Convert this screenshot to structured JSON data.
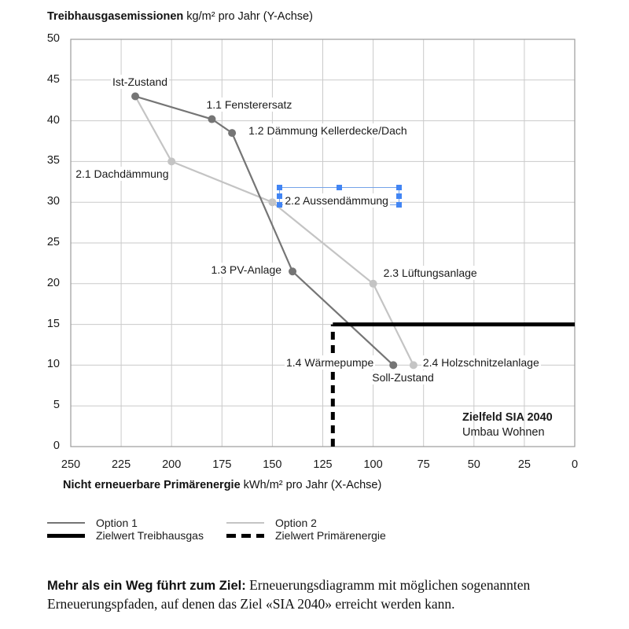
{
  "chart_data": {
    "type": "line",
    "x_axis": {
      "title_bold": "Nicht erneuerbare Primärenergie",
      "title_rest": " kWh/m² pro Jahr (X-Achse)",
      "ticks": [
        250,
        225,
        200,
        175,
        150,
        125,
        100,
        75,
        50,
        25,
        0
      ],
      "range": [
        0,
        250
      ],
      "reversed": true,
      "grid": true
    },
    "y_axis": {
      "title_bold": "Treibhausgasemissionen",
      "title_rest": " kg/m² pro Jahr (Y-Achse)",
      "ticks": [
        50,
        45,
        40,
        35,
        30,
        25,
        20,
        15,
        10,
        5,
        0
      ],
      "range": [
        0,
        50
      ],
      "grid": true
    },
    "series": [
      {
        "name": "Option 1",
        "color": "#757575",
        "points": [
          {
            "x": 218,
            "y": 43,
            "labels": [
              {
                "text": "Ist-Zustand",
                "anchor": "middle",
                "dx": 6,
                "dy": -19
              }
            ]
          },
          {
            "x": 180,
            "y": 40.2,
            "labels": [
              {
                "text": "1.1 Fensterersatz",
                "anchor": "start",
                "dx": -7,
                "dy": -19
              }
            ]
          },
          {
            "x": 170,
            "y": 38.5,
            "labels": [
              {
                "text": "1.2 Dämmung Kellerdecke/Dach",
                "anchor": "start",
                "dx": 21,
                "dy": -3
              }
            ]
          },
          {
            "x": 140,
            "y": 21.5,
            "labels": [
              {
                "text": "1.3 PV-Anlage",
                "anchor": "end",
                "dx": -14,
                "dy": -2
              }
            ]
          },
          {
            "x": 90,
            "y": 10,
            "labels": [
              {
                "text": "1.4 Wärmepumpe",
                "anchor": "end",
                "dx": -25,
                "dy": -3
              },
              {
                "text": "Soll-Zustand",
                "anchor": "start",
                "dx": -27,
                "dy": 16
              }
            ]
          }
        ]
      },
      {
        "name": "Option 2",
        "color": "#c4c4c4",
        "points": [
          {
            "x": 218,
            "y": 43
          },
          {
            "x": 200,
            "y": 35,
            "labels": [
              {
                "text": "2.1 Dachdämmung",
                "anchor": "start",
                "dx": -122,
                "dy": 16
              }
            ]
          },
          {
            "x": 150,
            "y": 30,
            "labels": [
              {
                "text": "2.2 Aussendämmung",
                "anchor": "start",
                "dx": 16,
                "dy": -2
              }
            ],
            "selected": true
          },
          {
            "x": 100,
            "y": 20,
            "labels": [
              {
                "text": "2.3 Lüftungsanlage",
                "anchor": "start",
                "dx": 13,
                "dy": -14
              }
            ]
          },
          {
            "x": 80,
            "y": 10,
            "labels": [
              {
                "text": "2.4 Holzschnitzelanlage",
                "anchor": "start",
                "dx": 12,
                "dy": -3
              }
            ]
          }
        ]
      }
    ],
    "target_lines": [
      {
        "name": "Zielwert Treibhausgas",
        "orientation": "horizontal",
        "value": 15,
        "from": 120,
        "to": 0,
        "style": "solid",
        "color": "#000000"
      },
      {
        "name": "Zielwert Primärenergie",
        "orientation": "vertical",
        "value": 120,
        "from": 0,
        "to": 15,
        "style": "dashed",
        "color": "#000000"
      }
    ],
    "annotation": {
      "line1": "Zielfeld SIA 2040",
      "line2": "Umbau Wohnen"
    },
    "grid_color": "#cacaca",
    "border_color": "#9b9b9b",
    "selection_color": "#4285f4"
  },
  "legend": {
    "items": [
      {
        "label": "Option 1",
        "swatch": "thin",
        "color": "#757575"
      },
      {
        "label": "Option 2",
        "swatch": "thin",
        "color": "#c4c4c4"
      },
      {
        "label": "Zielwert Treibhausgas",
        "swatch": "thick",
        "color": "#000000"
      },
      {
        "label": "Zielwert Primärenergie",
        "swatch": "dashed",
        "color": "#000000"
      }
    ]
  },
  "caption": {
    "lead": "Mehr als ein Weg führt zum Ziel:",
    "body": "Erneuerungsdiagramm mit möglichen sogenannten Erneuerungspfaden, auf denen das Ziel «SIA 2040» erreicht werden kann."
  }
}
